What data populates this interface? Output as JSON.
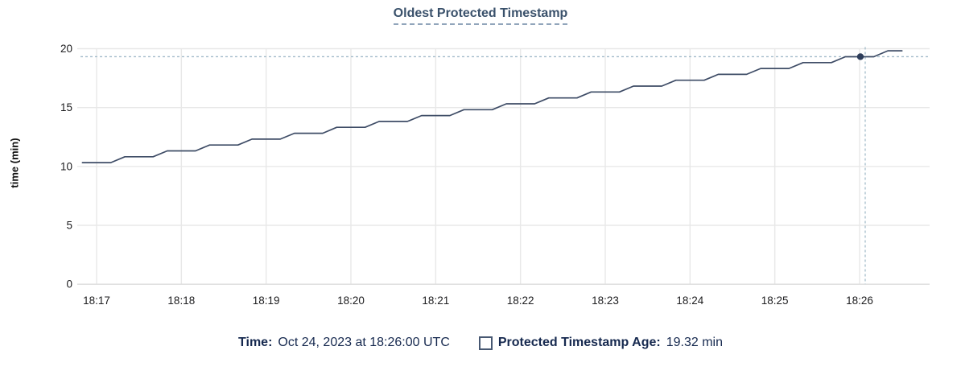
{
  "header": {
    "title": "Oldest Protected Timestamp"
  },
  "legend": {
    "time_label": "Time:",
    "time_value": "Oct 24, 2023 at 18:26:00 UTC",
    "age_label": "Protected Timestamp Age:",
    "age_value": "19.32 min"
  },
  "colors": {
    "line": "#3e4c66",
    "dot": "#2e3e5b",
    "crosshair": "#a3bcca",
    "grid": "#e8e8e8",
    "grid_zero": "#dcdcdc",
    "title_text": "#3a516b",
    "legend_text": "#16294f",
    "tick_text": "#1d1d1f",
    "swatch_border": "#475872"
  },
  "chart_data": {
    "type": "line",
    "title": "Oldest Protected Timestamp",
    "xlabel": "",
    "ylabel": "time (min)",
    "ylim": [
      0,
      20
    ],
    "y_ticks": [
      20,
      15,
      10,
      5,
      0
    ],
    "x_ticks": [
      "18:17",
      "18:18",
      "18:19",
      "18:20",
      "18:21",
      "18:22",
      "18:23",
      "18:24",
      "18:25",
      "18:26"
    ],
    "grid": true,
    "legend_position": "bottom",
    "series": [
      {
        "name": "Protected Timestamp Age",
        "unit": "min",
        "x": [
          "18:16:50",
          "18:17:00",
          "18:17:10",
          "18:17:20",
          "18:17:30",
          "18:17:40",
          "18:17:50",
          "18:18:00",
          "18:18:10",
          "18:18:20",
          "18:18:30",
          "18:18:40",
          "18:18:50",
          "18:19:00",
          "18:19:10",
          "18:19:20",
          "18:19:30",
          "18:19:40",
          "18:19:50",
          "18:20:00",
          "18:20:10",
          "18:20:20",
          "18:20:30",
          "18:20:40",
          "18:20:50",
          "18:21:00",
          "18:21:10",
          "18:21:20",
          "18:21:30",
          "18:21:40",
          "18:21:50",
          "18:22:00",
          "18:22:10",
          "18:22:20",
          "18:22:30",
          "18:22:40",
          "18:22:50",
          "18:23:00",
          "18:23:10",
          "18:23:20",
          "18:23:30",
          "18:23:40",
          "18:23:50",
          "18:24:00",
          "18:24:10",
          "18:24:20",
          "18:24:30",
          "18:24:40",
          "18:24:50",
          "18:25:00",
          "18:25:10",
          "18:25:20",
          "18:25:30",
          "18:25:40",
          "18:25:50",
          "18:26:00",
          "18:26:10",
          "18:26:20",
          "18:26:30"
        ],
        "y": [
          10.32,
          10.32,
          10.32,
          10.82,
          10.82,
          10.82,
          11.32,
          11.32,
          11.32,
          11.82,
          11.82,
          11.82,
          12.32,
          12.32,
          12.32,
          12.82,
          12.82,
          12.82,
          13.32,
          13.32,
          13.32,
          13.82,
          13.82,
          13.82,
          14.32,
          14.32,
          14.32,
          14.82,
          14.82,
          14.82,
          15.32,
          15.32,
          15.32,
          15.82,
          15.82,
          15.82,
          16.32,
          16.32,
          16.32,
          16.82,
          16.82,
          16.82,
          17.32,
          17.32,
          17.32,
          17.82,
          17.82,
          17.82,
          18.32,
          18.32,
          18.32,
          18.82,
          18.82,
          18.82,
          19.32,
          19.32,
          19.32,
          19.82,
          19.82
        ]
      }
    ],
    "crosshair": {
      "time": "18:26:00",
      "value": 19.32,
      "time_display": "Oct 24, 2023 at 18:26:00 UTC",
      "value_display": "19.32 min"
    }
  }
}
